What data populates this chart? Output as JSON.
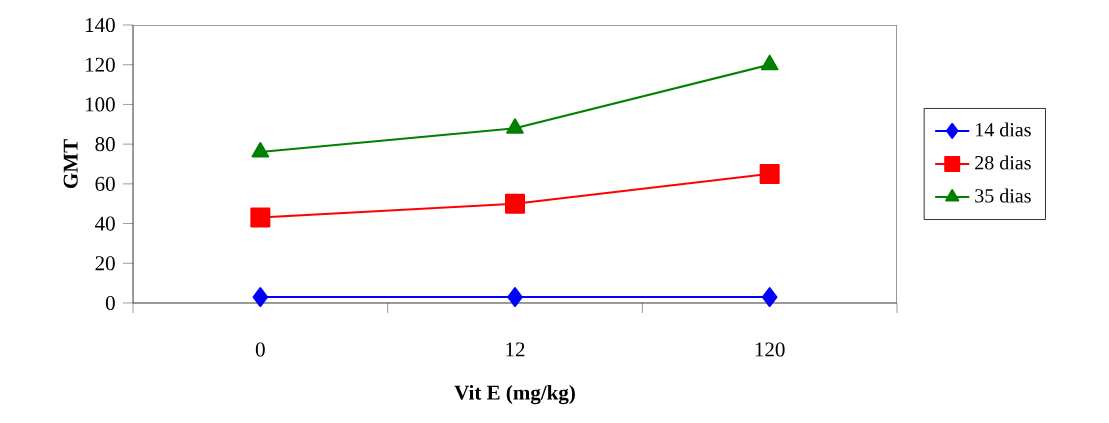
{
  "chart_data": {
    "type": "line",
    "xlabel": "Vit E (mg/kg)",
    "ylabel": "GMT",
    "categories": [
      "0",
      "12",
      "120"
    ],
    "series": [
      {
        "name": "14 dias",
        "color": "#0000ff",
        "marker": "diamond",
        "values": [
          3,
          3,
          3
        ]
      },
      {
        "name": "28 dias",
        "color": "#ff0000",
        "marker": "square",
        "values": [
          43,
          50,
          65
        ]
      },
      {
        "name": "35 dias",
        "color": "#008000",
        "marker": "triangle",
        "values": [
          76,
          88,
          120
        ]
      }
    ],
    "ylim": [
      0,
      140
    ],
    "yticks": [
      0,
      20,
      40,
      60,
      80,
      100,
      120,
      140
    ],
    "grid": false,
    "legend": "right",
    "line_style": "solid"
  }
}
